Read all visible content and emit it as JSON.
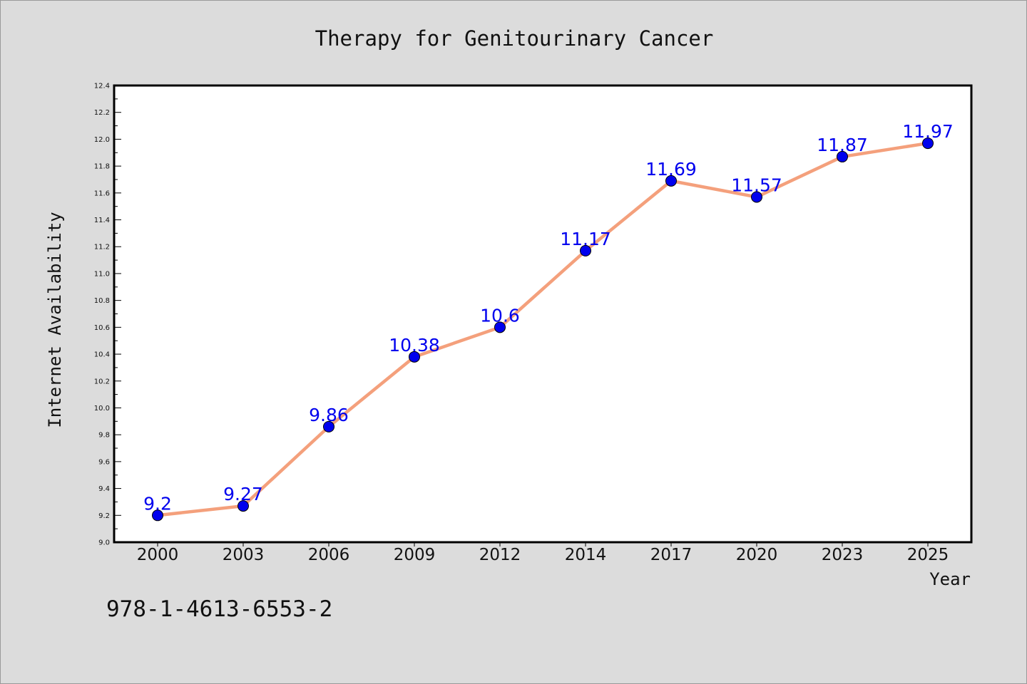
{
  "chart_data": {
    "type": "line",
    "title": "Therapy for Genitourinary Cancer",
    "xlabel": "Year",
    "ylabel": "Internet Availability",
    "categories": [
      "2000",
      "2003",
      "2006",
      "2009",
      "2012",
      "2014",
      "2017",
      "2020",
      "2023",
      "2025"
    ],
    "series": [
      {
        "values": [
          9.2,
          9.27,
          9.86,
          10.38,
          10.6,
          11.17,
          11.69,
          11.57,
          11.87,
          11.97
        ],
        "data_labels": [
          "9.2",
          "9.27",
          "9.86",
          "10.38",
          "10.6",
          "11.17",
          "11.69",
          "11.57",
          "11.87",
          "11.97"
        ]
      }
    ],
    "ylim": [
      9.0,
      12.4
    ],
    "yticks": [
      "9.0",
      "9.2",
      "9.4",
      "9.6",
      "9.8",
      "10.0",
      "10.2",
      "10.4",
      "10.6",
      "10.8",
      "11.0",
      "11.2",
      "11.4",
      "11.6",
      "11.8",
      "12.0",
      "12.2",
      "12.4"
    ],
    "grid": false,
    "legend": "none"
  },
  "footer": {
    "isbn": "978-1-4613-6553-2"
  },
  "colors": {
    "background": "#dcdcdc",
    "plot_background": "#ffffff",
    "line": "#f4a07c",
    "marker": "#0000ee",
    "data_label": "#0000ee"
  }
}
